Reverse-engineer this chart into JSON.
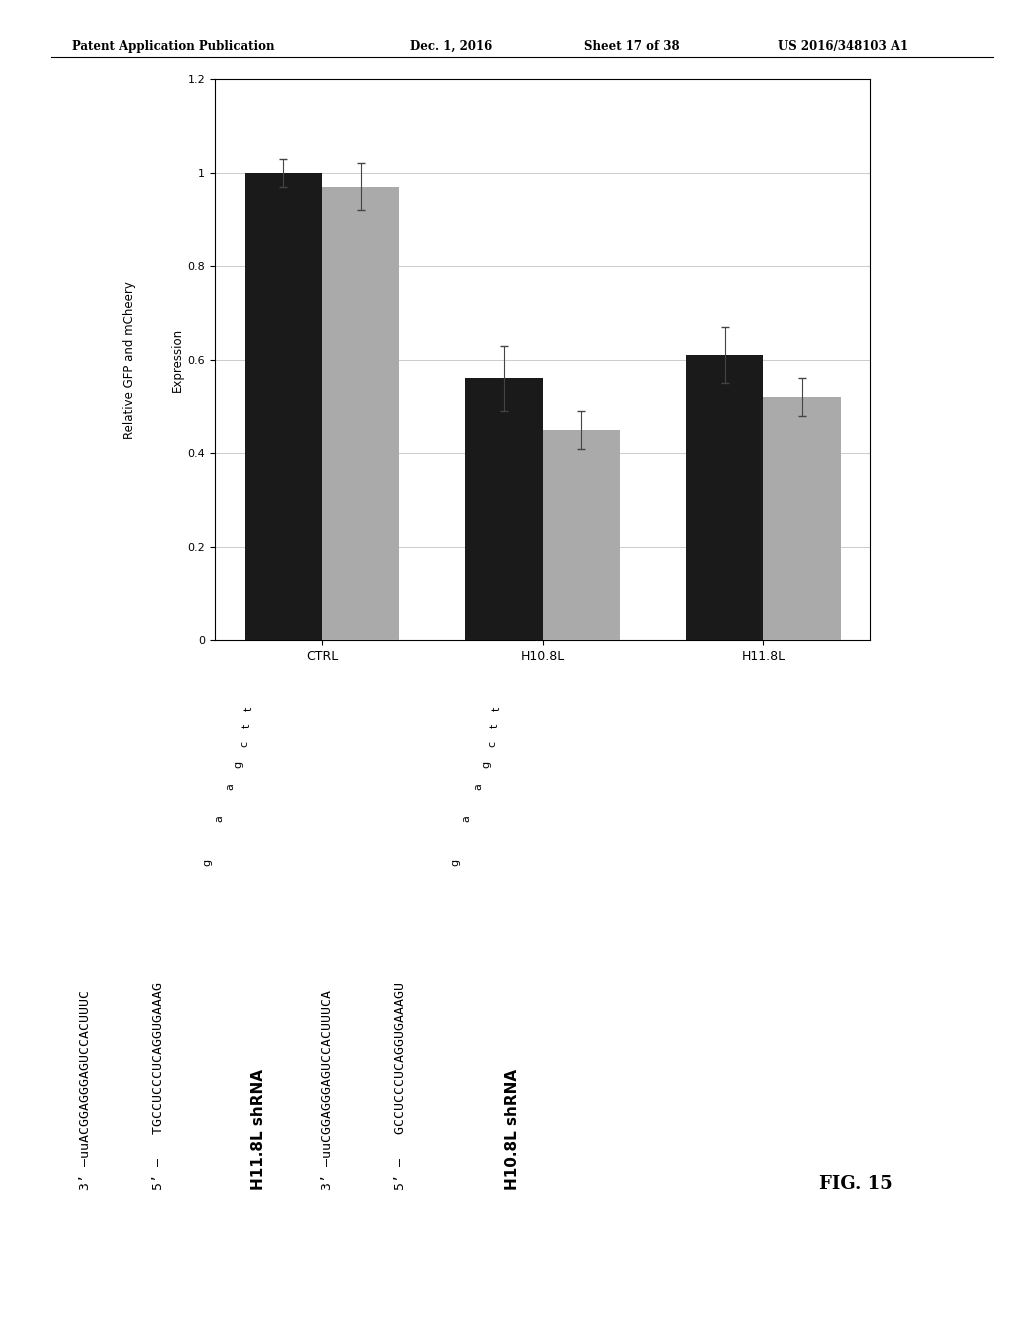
{
  "header_left": "Patent Application Publication",
  "header_date": "Dec. 1, 2016",
  "header_sheet": "Sheet 17 of 38",
  "header_patent": "US 2016/348103 A1",
  "fig_label": "FIG. 15",
  "chart": {
    "groups": [
      "CTRL",
      "H10.8L",
      "H11.8L"
    ],
    "dark_values": [
      1.0,
      0.56,
      0.61
    ],
    "light_values": [
      0.97,
      0.45,
      0.52
    ],
    "dark_errors": [
      0.03,
      0.07,
      0.06
    ],
    "light_errors": [
      0.05,
      0.04,
      0.04
    ],
    "dark_color": "#1a1a1a",
    "light_color": "#aaaaaa",
    "xlim": [
      0,
      1.2
    ],
    "xticks": [
      0,
      0.2,
      0.4,
      0.6,
      0.8,
      1.0,
      1.2
    ],
    "xticklabels": [
      "0",
      "0.2",
      "0.4",
      "0.6",
      "0.8",
      "1",
      "1.2"
    ],
    "ylabel_line1": "Relative GFP and mCheery",
    "ylabel_line2": "Expression"
  },
  "seq1_title": "H10.8L shRNA",
  "seq1_5p": "5’ —   GCCUCCCUCAGGUGAAAGU",
  "seq1_3p": "3’ —uuCGGAGGGAGUCCACUUUCA",
  "seq1_loop": [
    "g",
    "a",
    "a",
    "g",
    "c",
    "t",
    "t"
  ],
  "seq2_title": "H11.8L shRNA",
  "seq2_5p": "5’ —   TGCCUCCCUCAGGUGAAAG",
  "seq2_3p": "3’ —uuACGGAGGGAGUCCACUUUC",
  "seq2_loop": [
    "g",
    "a",
    "a",
    "g",
    "c",
    "t",
    "t"
  ],
  "bg": "#ffffff"
}
